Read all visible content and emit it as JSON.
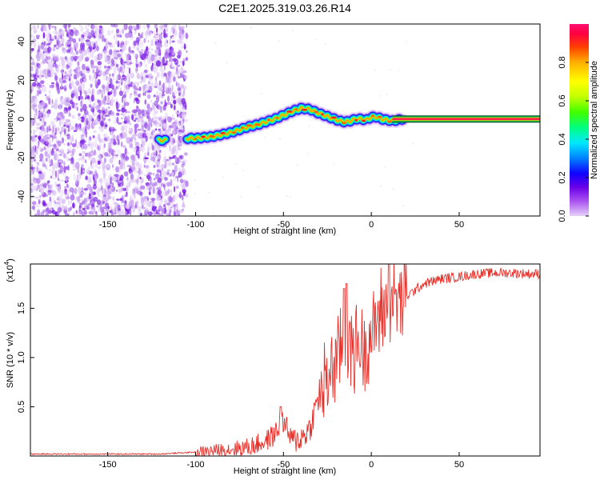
{
  "title": "C2E1.2025.319.03.26.R14",
  "chart_data": [
    {
      "type": "heatmap",
      "xlabel": "Height of straight line (km)",
      "ylabel": "Frequency (Hz)",
      "xlim": [
        -194,
        96
      ],
      "ylim": [
        -50,
        49
      ],
      "x_ticks": [
        -150,
        -100,
        -50,
        0,
        50
      ],
      "y_ticks": [
        -40,
        -20,
        0,
        20,
        40
      ],
      "colorbar": {
        "label": "Normalized spectral amplitude",
        "range": [
          0,
          1
        ],
        "ticks": [
          "0.0",
          "0.2",
          "0.4",
          "0.6",
          "0.8"
        ],
        "colormap": [
          "#e6d2f8",
          "#a84ff0",
          "#6a00e8",
          "#1000ff",
          "#0080ff",
          "#00e8ff",
          "#00ff80",
          "#40ff00",
          "#c0ff00",
          "#ffff00",
          "#ffb000",
          "#ff4000",
          "#ff0040",
          "#ff1070"
        ]
      },
      "noise_region": {
        "x_range": [
          -194,
          -105
        ],
        "freq_range": [
          -50,
          49
        ]
      },
      "ridge": {
        "x": [
          -122,
          -118,
          -112,
          -106,
          -100,
          -95,
          -90,
          -85,
          -80,
          -75,
          -70,
          -65,
          -60,
          -55,
          -50,
          -45,
          -40,
          -35,
          -30,
          -27,
          -24,
          -21,
          -18,
          -15,
          -12,
          -9,
          -6,
          -3,
          0,
          3,
          6,
          9,
          12,
          15,
          18
        ],
        "freq": [
          -11,
          -11,
          -11,
          -10,
          -10,
          -9.5,
          -9,
          -8,
          -7,
          -5.5,
          -4,
          -3,
          -1.5,
          0,
          2,
          4,
          5.5,
          5,
          3,
          2,
          1,
          0,
          -1,
          -1.5,
          -1,
          0,
          0,
          -0.5,
          1,
          1,
          0,
          -0.5,
          -1,
          -0.5,
          0
        ]
      },
      "steady_line": {
        "x_range": [
          12,
          96
        ],
        "freq": 0
      }
    },
    {
      "type": "line",
      "xlabel": "Height of straight line (km)",
      "ylabel": "SNR (10 * v/v)",
      "scale_label": "(x10",
      "scale_exponent": "4",
      "xlim": [
        -194,
        96
      ],
      "ylim": [
        0,
        1.95
      ],
      "x_ticks": [
        -150,
        -100,
        -50,
        0,
        50
      ],
      "y_ticks": [
        "0.5",
        "1.0",
        "1.5"
      ],
      "line_color": "#e8302a",
      "envelope": {
        "x": [
          -194,
          -120,
          -100,
          -85,
          -70,
          -60,
          -55,
          -50,
          -45,
          -40,
          -35,
          -30,
          -25,
          -20,
          -15,
          -10,
          -5,
          0,
          5,
          10,
          15,
          20,
          30,
          40,
          50,
          60,
          70,
          80,
          90,
          96
        ],
        "y": [
          0.02,
          0.02,
          0.04,
          0.06,
          0.09,
          0.15,
          0.22,
          0.35,
          0.15,
          0.18,
          0.28,
          0.6,
          0.8,
          1.0,
          1.1,
          1.1,
          1.1,
          1.25,
          1.45,
          1.55,
          1.6,
          1.62,
          1.75,
          1.8,
          1.82,
          1.85,
          1.86,
          1.86,
          1.85,
          1.85
        ]
      },
      "spikes": [
        {
          "x": -51.5,
          "y": 0.5
        },
        {
          "x": -15.5,
          "y": 1.7
        },
        {
          "x": -14.0,
          "y": 1.75
        },
        {
          "x": 10.0,
          "y": 1.95
        }
      ]
    }
  ]
}
